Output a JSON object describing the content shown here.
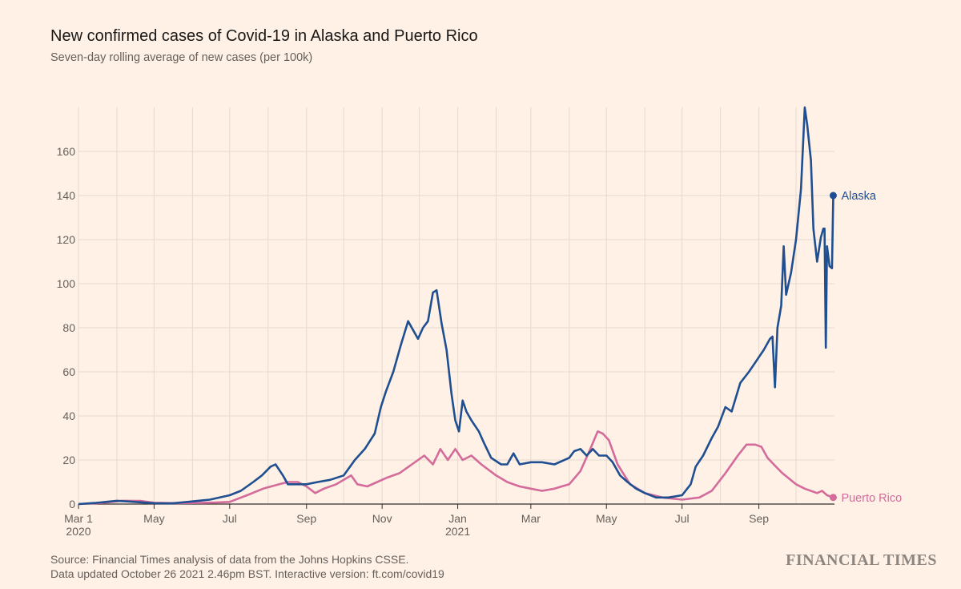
{
  "chart_data": {
    "type": "line",
    "title": "New confirmed cases of Covid-19 in Alaska and Puerto Rico",
    "subtitle": "Seven-day rolling average of new cases (per 100k)",
    "xlabel": "",
    "ylabel": "",
    "x_range": [
      "2020-03-01",
      "2021-10-26"
    ],
    "ylim": [
      0,
      180
    ],
    "y_ticks": [
      0,
      20,
      40,
      60,
      80,
      100,
      120,
      140,
      160
    ],
    "x_ticks": [
      {
        "date": "2020-03-01",
        "label": "Mar 1",
        "sub": "2020"
      },
      {
        "date": "2020-05-01",
        "label": "May",
        "sub": ""
      },
      {
        "date": "2020-07-01",
        "label": "Jul",
        "sub": ""
      },
      {
        "date": "2020-09-01",
        "label": "Sep",
        "sub": ""
      },
      {
        "date": "2020-11-01",
        "label": "Nov",
        "sub": ""
      },
      {
        "date": "2021-01-01",
        "label": "Jan",
        "sub": "2021"
      },
      {
        "date": "2021-03-01",
        "label": "Mar",
        "sub": ""
      },
      {
        "date": "2021-05-01",
        "label": "May",
        "sub": ""
      },
      {
        "date": "2021-07-01",
        "label": "Jul",
        "sub": ""
      },
      {
        "date": "2021-09-01",
        "label": "Sep",
        "sub": ""
      }
    ],
    "grid": true,
    "series": [
      {
        "name": "Alaska",
        "color": "#1f4e91",
        "points": [
          [
            "2020-03-01",
            0
          ],
          [
            "2020-03-15",
            0.5
          ],
          [
            "2020-04-01",
            1.5
          ],
          [
            "2020-04-15",
            1
          ],
          [
            "2020-05-01",
            0.4
          ],
          [
            "2020-05-15",
            0.3
          ],
          [
            "2020-05-28",
            1
          ],
          [
            "2020-06-15",
            2
          ],
          [
            "2020-07-01",
            4
          ],
          [
            "2020-07-10",
            6
          ],
          [
            "2020-07-20",
            10
          ],
          [
            "2020-07-27",
            13
          ],
          [
            "2020-08-03",
            17
          ],
          [
            "2020-08-07",
            18
          ],
          [
            "2020-08-13",
            13
          ],
          [
            "2020-08-17",
            9
          ],
          [
            "2020-08-25",
            9
          ],
          [
            "2020-09-01",
            9
          ],
          [
            "2020-09-10",
            10
          ],
          [
            "2020-09-20",
            11
          ],
          [
            "2020-10-01",
            13
          ],
          [
            "2020-10-10",
            20
          ],
          [
            "2020-10-18",
            25
          ],
          [
            "2020-10-26",
            32
          ],
          [
            "2020-10-31",
            44
          ],
          [
            "2020-11-04",
            51
          ],
          [
            "2020-11-10",
            60
          ],
          [
            "2020-11-16",
            72
          ],
          [
            "2020-11-22",
            83
          ],
          [
            "2020-11-30",
            75
          ],
          [
            "2020-12-04",
            80
          ],
          [
            "2020-12-08",
            83
          ],
          [
            "2020-12-12",
            96
          ],
          [
            "2020-12-15",
            97
          ],
          [
            "2020-12-19",
            82
          ],
          [
            "2020-12-23",
            70
          ],
          [
            "2020-12-27",
            50
          ],
          [
            "2020-12-30",
            38
          ],
          [
            "2021-01-02",
            33
          ],
          [
            "2021-01-05",
            47
          ],
          [
            "2021-01-08",
            42
          ],
          [
            "2021-01-12",
            38
          ],
          [
            "2021-01-18",
            33
          ],
          [
            "2021-01-22",
            28
          ],
          [
            "2021-01-28",
            21
          ],
          [
            "2021-02-05",
            18
          ],
          [
            "2021-02-10",
            18
          ],
          [
            "2021-02-15",
            23
          ],
          [
            "2021-02-20",
            18
          ],
          [
            "2021-03-01",
            19
          ],
          [
            "2021-03-10",
            19
          ],
          [
            "2021-03-20",
            18
          ],
          [
            "2021-04-01",
            21
          ],
          [
            "2021-04-05",
            24
          ],
          [
            "2021-04-10",
            25
          ],
          [
            "2021-04-15",
            22
          ],
          [
            "2021-04-20",
            25
          ],
          [
            "2021-04-25",
            22
          ],
          [
            "2021-05-01",
            22
          ],
          [
            "2021-05-06",
            19
          ],
          [
            "2021-05-12",
            13
          ],
          [
            "2021-05-18",
            10
          ],
          [
            "2021-05-25",
            7
          ],
          [
            "2021-06-01",
            5
          ],
          [
            "2021-06-10",
            3
          ],
          [
            "2021-06-20",
            3
          ],
          [
            "2021-07-01",
            4
          ],
          [
            "2021-07-08",
            9
          ],
          [
            "2021-07-12",
            17
          ],
          [
            "2021-07-18",
            22
          ],
          [
            "2021-07-25",
            30
          ],
          [
            "2021-07-30",
            35
          ],
          [
            "2021-08-05",
            44
          ],
          [
            "2021-08-10",
            42
          ],
          [
            "2021-08-17",
            55
          ],
          [
            "2021-08-24",
            60
          ],
          [
            "2021-08-30",
            65
          ],
          [
            "2021-09-05",
            70
          ],
          [
            "2021-09-10",
            75
          ],
          [
            "2021-09-12",
            76
          ],
          [
            "2021-09-14",
            53
          ],
          [
            "2021-09-16",
            80
          ],
          [
            "2021-09-19",
            90
          ],
          [
            "2021-09-21",
            117
          ],
          [
            "2021-09-23",
            95
          ],
          [
            "2021-09-27",
            105
          ],
          [
            "2021-10-01",
            120
          ],
          [
            "2021-10-05",
            143
          ],
          [
            "2021-10-08",
            180
          ],
          [
            "2021-10-10",
            172
          ],
          [
            "2021-10-13",
            156
          ],
          [
            "2021-10-15",
            125
          ],
          [
            "2021-10-18",
            110
          ],
          [
            "2021-10-21",
            121
          ],
          [
            "2021-10-23",
            125
          ],
          [
            "2021-10-24",
            125
          ],
          [
            "2021-10-25",
            71
          ],
          [
            "2021-10-26",
            117
          ],
          [
            "2021-10-28",
            108
          ],
          [
            "2021-10-30",
            107
          ],
          [
            "2021-10-31",
            140
          ]
        ]
      },
      {
        "name": "Puerto Rico",
        "color": "#d36b9b",
        "points": [
          [
            "2020-03-01",
            0
          ],
          [
            "2020-03-20",
            0.5
          ],
          [
            "2020-04-05",
            1.5
          ],
          [
            "2020-04-20",
            1.4
          ],
          [
            "2020-05-01",
            0.6
          ],
          [
            "2020-05-20",
            0.4
          ],
          [
            "2020-06-05",
            0.5
          ],
          [
            "2020-06-20",
            0.7
          ],
          [
            "2020-07-01",
            1
          ],
          [
            "2020-07-15",
            4
          ],
          [
            "2020-07-28",
            7
          ],
          [
            "2020-08-10",
            9
          ],
          [
            "2020-08-17",
            10
          ],
          [
            "2020-08-25",
            10
          ],
          [
            "2020-09-01",
            8
          ],
          [
            "2020-09-08",
            5
          ],
          [
            "2020-09-15",
            7
          ],
          [
            "2020-09-25",
            9
          ],
          [
            "2020-10-01",
            11
          ],
          [
            "2020-10-07",
            13
          ],
          [
            "2020-10-12",
            9
          ],
          [
            "2020-10-20",
            8
          ],
          [
            "2020-10-28",
            10
          ],
          [
            "2020-11-05",
            12
          ],
          [
            "2020-11-15",
            14
          ],
          [
            "2020-11-25",
            18
          ],
          [
            "2020-12-05",
            22
          ],
          [
            "2020-12-12",
            18
          ],
          [
            "2020-12-18",
            25
          ],
          [
            "2020-12-24",
            20
          ],
          [
            "2020-12-30",
            25
          ],
          [
            "2021-01-05",
            20
          ],
          [
            "2021-01-12",
            22
          ],
          [
            "2021-01-20",
            18
          ],
          [
            "2021-02-01",
            13
          ],
          [
            "2021-02-10",
            10
          ],
          [
            "2021-02-20",
            8
          ],
          [
            "2021-03-01",
            7
          ],
          [
            "2021-03-10",
            6
          ],
          [
            "2021-03-20",
            7
          ],
          [
            "2021-04-01",
            9
          ],
          [
            "2021-04-10",
            15
          ],
          [
            "2021-04-18",
            25
          ],
          [
            "2021-04-24",
            33
          ],
          [
            "2021-04-28",
            32
          ],
          [
            "2021-05-03",
            29
          ],
          [
            "2021-05-10",
            18
          ],
          [
            "2021-05-20",
            9
          ],
          [
            "2021-06-01",
            5
          ],
          [
            "2021-06-15",
            3
          ],
          [
            "2021-07-01",
            2
          ],
          [
            "2021-07-15",
            3
          ],
          [
            "2021-07-25",
            6
          ],
          [
            "2021-08-05",
            14
          ],
          [
            "2021-08-15",
            22
          ],
          [
            "2021-08-22",
            27
          ],
          [
            "2021-08-29",
            27
          ],
          [
            "2021-09-03",
            26
          ],
          [
            "2021-09-08",
            21
          ],
          [
            "2021-09-13",
            18
          ],
          [
            "2021-09-20",
            14
          ],
          [
            "2021-10-01",
            9
          ],
          [
            "2021-10-08",
            7
          ],
          [
            "2021-10-18",
            5
          ],
          [
            "2021-10-22",
            6
          ],
          [
            "2021-10-26",
            4
          ],
          [
            "2021-10-31",
            3
          ]
        ]
      }
    ]
  },
  "source_line1": "Source: Financial Times analysis of data from the Johns Hopkins CSSE.",
  "source_line2": "Data updated October 26 2021 2.46pm BST. Interactive version: ft.com/covid19",
  "brand": "FINANCIAL TIMES"
}
